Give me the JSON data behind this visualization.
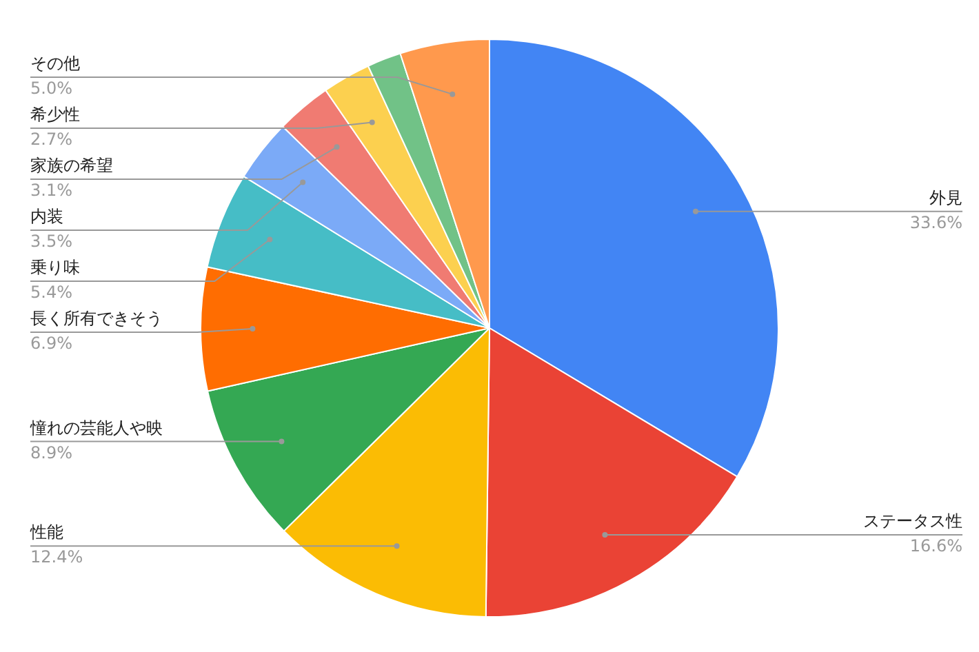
{
  "chart_data": {
    "type": "pie",
    "categories": [
      "外見",
      "ステータス性",
      "性能",
      "憧れの芸能人や映",
      "長く所有できそう",
      "乗り味",
      "内装",
      "家族の希望",
      "希少性",
      null,
      "その他"
    ],
    "values": [
      33.6,
      16.6,
      12.4,
      8.9,
      6.9,
      5.4,
      3.5,
      3.1,
      2.7,
      1.9,
      5.0
    ],
    "value_labels": [
      "33.6%",
      "16.6%",
      "12.4%",
      "8.9%",
      "6.9%",
      "5.4%",
      "3.5%",
      "3.1%",
      "2.7%",
      null,
      "5.0%"
    ],
    "colors": [
      "#4285f4",
      "#ea4335",
      "#fbbc04",
      "#34a853",
      "#ff6d01",
      "#46bdc6",
      "#7baaf7",
      "#f07b72",
      "#fcd04f",
      "#71c287",
      "#ff994d"
    ],
    "legend": false
  }
}
